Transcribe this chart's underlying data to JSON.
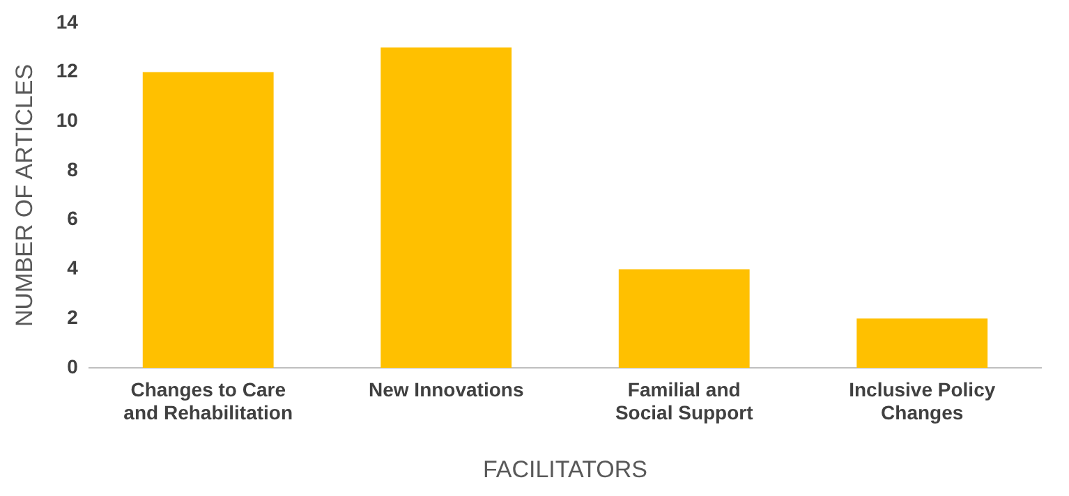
{
  "chart_data": {
    "type": "bar",
    "xlabel": "FACILITATORS",
    "ylabel": "NUMBER OF ARTICLES",
    "categories": [
      "Changes to Care and Rehabilitation",
      "New Innovations",
      "Familial and Social Support",
      "Inclusive Policy Changes"
    ],
    "values": [
      12,
      13,
      4,
      2
    ],
    "color": "#ffc000",
    "ylim": [
      0,
      14
    ],
    "yticks": [
      0,
      2,
      4,
      6,
      8,
      10,
      12,
      14
    ],
    "grid": false,
    "legend": false
  }
}
